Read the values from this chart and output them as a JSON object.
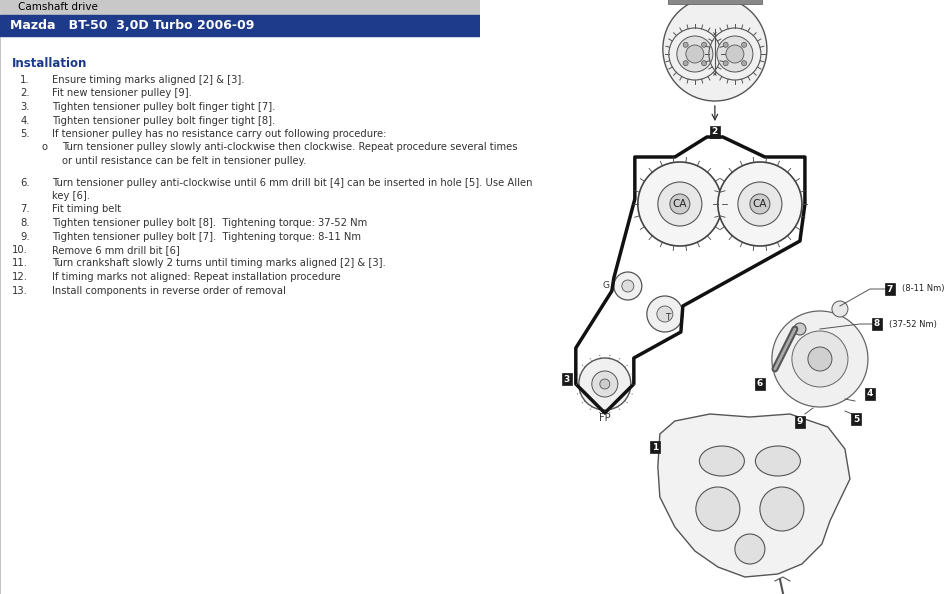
{
  "title_bar_color": "#1e3a8a",
  "title_bar_text": "Mazda   BT-50  3,0D Turbo 2006-09",
  "title_bar_text_color": "#ffffff",
  "window_bar_color": "#c8c8c8",
  "window_bar_text": "Camshaft drive",
  "window_bar_text_color": "#000000",
  "background_color": "#ffffff",
  "section_title": "Installation",
  "section_title_color": "#1a3a8a",
  "text_color": "#333333"
}
